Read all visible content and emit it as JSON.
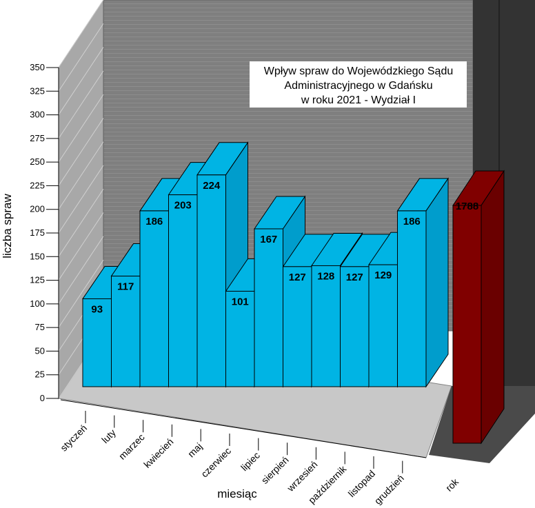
{
  "chart_data": {
    "type": "bar",
    "title_lines": [
      "Wpływ spraw do Wojewódzkiego Sądu",
      "Administracyjnego w Gdańsku",
      "w roku 2021 - Wydział I"
    ],
    "xlabel": "miesiąc",
    "ylabel": "liczba spraw",
    "ylim": [
      0,
      350
    ],
    "yticks": [
      "0",
      "25",
      "50",
      "75",
      "100",
      "125",
      "150",
      "175",
      "200",
      "225",
      "250",
      "275",
      "300",
      "325",
      "350"
    ],
    "categories": [
      "styczeń",
      "luty",
      "marzec",
      "kwiecień",
      "maj",
      "czerwiec",
      "lipiec",
      "sierpień",
      "wrzesień",
      "październik",
      "listopad",
      "grudzień"
    ],
    "values": [
      93,
      117,
      186,
      203,
      224,
      101,
      167,
      127,
      128,
      127,
      129,
      186
    ],
    "total_category": "rok",
    "total_value": 1788,
    "three_d": true,
    "colors": {
      "bar_front": "#00b4e4",
      "bar_side": "#009dcc",
      "total_front": "#800000",
      "total_side": "#6a0000",
      "back_wall": "#808080",
      "side_wall": "#a8a8a8",
      "floor": "#c8c8c8",
      "total_wall": "#333333",
      "total_floor": "#4a4a4a"
    }
  }
}
